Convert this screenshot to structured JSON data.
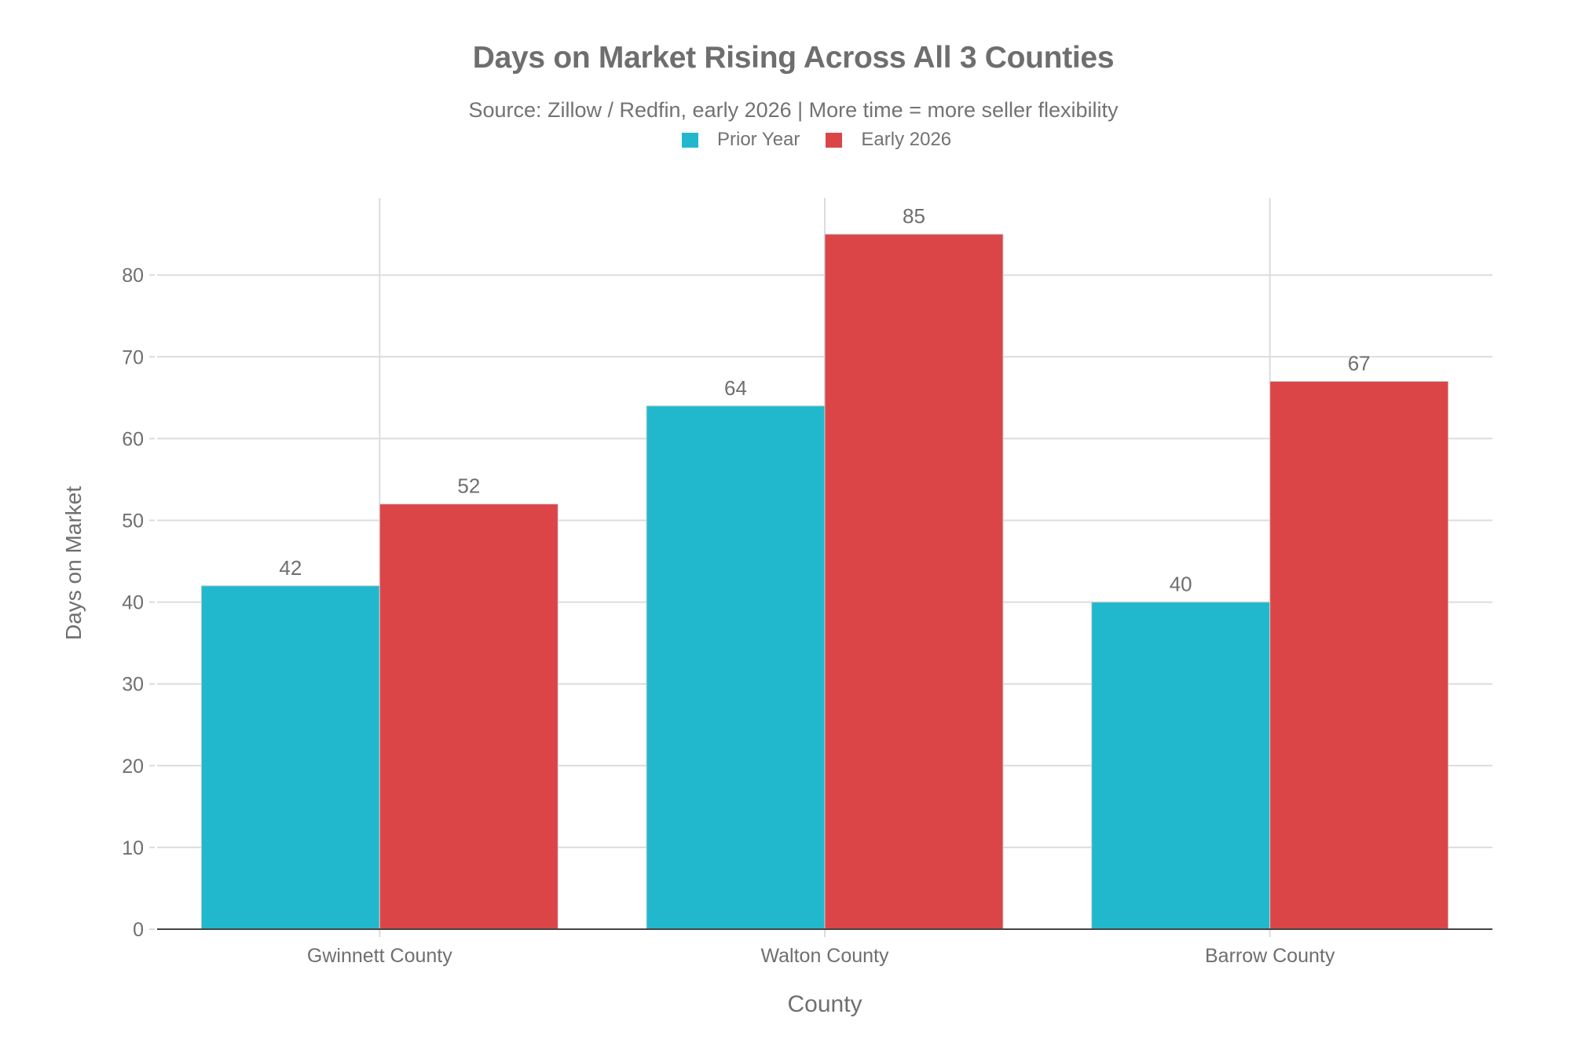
{
  "title": "Days on Market Rising Across All 3 Counties",
  "subtitle": "Source: Zillow / Redfin, early 2026 | More time = more seller flexibility",
  "legend": [
    {
      "label": "Prior Year",
      "color": "#21B8CD"
    },
    {
      "label": "Early 2026",
      "color": "#DB4547"
    }
  ],
  "colors": {
    "prior_year": "#21B8CD",
    "early_2026": "#DB4547",
    "grid": "#dcdcdc",
    "axis_line": "#444444",
    "text": "#6f6f6f"
  },
  "chart_data": {
    "type": "bar",
    "title": "Days on Market Rising Across All 3 Counties",
    "subtitle": "Source: Zillow / Redfin, early 2026 | More time = more seller flexibility",
    "categories": [
      "Gwinnett County",
      "Walton County",
      "Barrow County"
    ],
    "series": [
      {
        "name": "Prior Year",
        "color": "#21B8CD",
        "values": [
          42,
          64,
          40
        ]
      },
      {
        "name": "Early 2026",
        "color": "#DB4547",
        "values": [
          52,
          85,
          67
        ]
      }
    ],
    "xlabel": "County",
    "ylabel": "Days on Market",
    "ylim": [
      0,
      89.5
    ],
    "yticks": [
      0,
      10,
      20,
      30,
      40,
      50,
      60,
      70,
      80
    ],
    "grid": true,
    "legend_position": "top-center",
    "data_labels": true
  }
}
